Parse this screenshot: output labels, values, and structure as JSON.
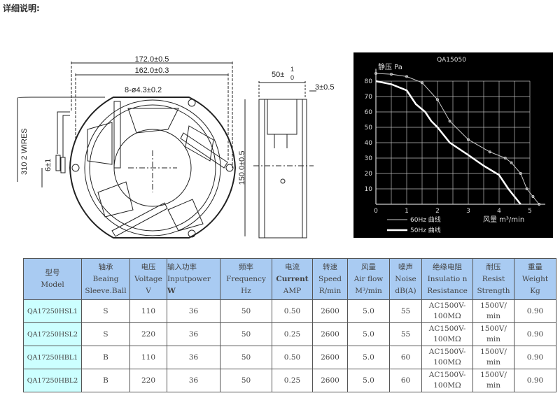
{
  "title": "详细说明:",
  "drawing": {
    "dim_outer_width": "172.0±0.5",
    "dim_inner_width": "162.0±0.3",
    "dim_holes": "8-ø4.3±0.2",
    "dim_height": "150.0±0.5",
    "dim_depth": "50±",
    "dim_depth_tol_upper": "1",
    "dim_depth_tol_lower": "0",
    "dim_flange": "3±0.5",
    "dim_wires": "310   2 WIRES",
    "dim_strip": "6±1"
  },
  "chart_data": {
    "type": "line",
    "title": "QA15050",
    "ylabel": "静压 Pa",
    "xlabel": "风量 m³/min",
    "xlim": [
      0,
      5.5
    ],
    "ylim": [
      0,
      85
    ],
    "x_ticks": [
      "0",
      "1",
      "2",
      "3",
      "4",
      "5"
    ],
    "y_ticks": [
      "10",
      "20",
      "30",
      "40",
      "50",
      "60",
      "70",
      "80"
    ],
    "grid": true,
    "legend": "bottom-left",
    "colors": {
      "background": "#000000",
      "grid": "#cccccc",
      "series": "#ffffff"
    },
    "series": [
      {
        "name": "60Hz  曲线",
        "x": [
          0,
          0.5,
          1,
          1.5,
          2,
          2.4,
          3,
          3.7,
          4.2,
          4.4,
          4.7,
          4.9,
          5.1,
          5.3
        ],
        "y": [
          85,
          84.5,
          83,
          79,
          68,
          54,
          42,
          34,
          30,
          27,
          20,
          10,
          5,
          0
        ]
      },
      {
        "name": "50Hz  曲线",
        "x": [
          0,
          0.5,
          1,
          1.3,
          1.6,
          1.8,
          2,
          2.4,
          3,
          3.5,
          4,
          4.3,
          4.5,
          4.7
        ],
        "y": [
          80,
          78,
          74,
          65,
          60,
          54,
          50,
          40,
          32,
          25,
          19,
          10,
          5,
          0
        ]
      }
    ]
  },
  "table": {
    "headers": [
      [
        "型号",
        "Model"
      ],
      [
        "轴承",
        "Beaing",
        "Sleeve.Ball"
      ],
      [
        "电压",
        "Voltage",
        "V"
      ],
      [
        "输入功率",
        "Inputpower",
        "W"
      ],
      [
        "频率",
        "Frequency",
        "Hz"
      ],
      [
        "电流",
        "Current",
        "AMP"
      ],
      [
        "转速",
        "Speed",
        "R/min"
      ],
      [
        "风量",
        "Air flow",
        "M³/min"
      ],
      [
        "噪声",
        "Noise",
        "dB(A)"
      ],
      [
        "绝缘电阻",
        "Insulatio n",
        "Resistance"
      ],
      [
        "耐压",
        "Resist",
        "Strength"
      ],
      [
        "重量",
        "Weight",
        "Kg"
      ]
    ],
    "rows": [
      [
        "QA17250HSL1",
        "S",
        "110",
        "36",
        "50",
        "0.50",
        "2600",
        "5.0",
        "55",
        "AC1500V-",
        "100MΩ",
        "1500V/",
        "min",
        "0.90"
      ],
      [
        "QA17250HSL2",
        "S",
        "220",
        "36",
        "50",
        "0.25",
        "2600",
        "5.0",
        "55",
        "AC1500V-",
        "100MΩ",
        "1500V/",
        "min",
        "0.90"
      ],
      [
        "QA17250HBL1",
        "B",
        "110",
        "36",
        "50",
        "0.50",
        "2600",
        "5.0",
        "60",
        "AC1500V-",
        "100MΩ",
        "1500V/",
        "min",
        "0.90"
      ],
      [
        "QA17250HBL2",
        "B",
        "220",
        "36",
        "50",
        "0.25",
        "2600",
        "5.0",
        "60",
        "AC1500V-",
        "100MΩ",
        "1500V/",
        "min",
        "0.90"
      ]
    ]
  }
}
